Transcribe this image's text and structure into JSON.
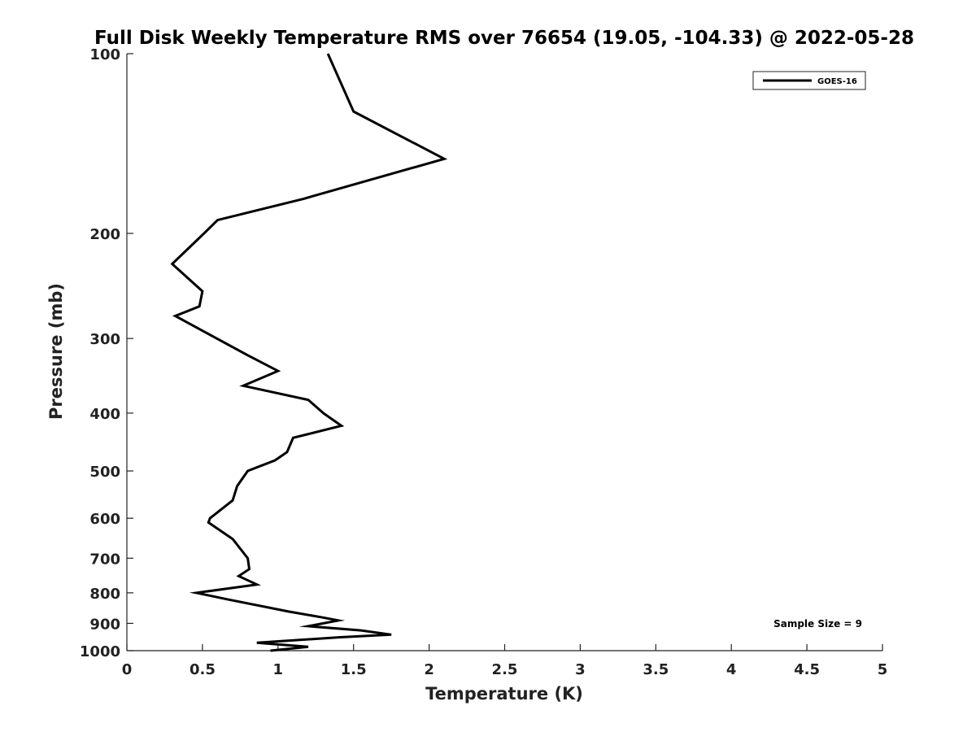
{
  "chart_data": {
    "type": "line",
    "title": "Full Disk Weekly Temperature RMS over 76654 (19.05, -104.33) @ 2022-05-28",
    "xlabel": "Temperature (K)",
    "ylabel": "Pressure (mb)",
    "xlim": [
      0,
      5
    ],
    "ylim": [
      100,
      1000
    ],
    "y_scale": "log",
    "y_reversed": true,
    "x_ticks": [
      0,
      0.5,
      1,
      1.5,
      2,
      2.5,
      3,
      3.5,
      4,
      4.5,
      5
    ],
    "x_tick_labels": [
      "0",
      "0.5",
      "1",
      "1.5",
      "2",
      "2.5",
      "3",
      "3.5",
      "4",
      "4.5",
      "5"
    ],
    "y_ticks": [
      100,
      200,
      300,
      400,
      500,
      600,
      700,
      800,
      900,
      1000
    ],
    "y_tick_labels": [
      "100",
      "200",
      "300",
      "400",
      "500",
      "600",
      "700",
      "800",
      "900",
      "1000"
    ],
    "grid": false,
    "legend_position": "top-right",
    "annotation": "Sample Size = 9",
    "series": [
      {
        "name": "GOES-16",
        "color": "#000000",
        "points": [
          [
            1.33,
            100
          ],
          [
            1.5,
            125
          ],
          [
            2.1,
            150
          ],
          [
            1.17,
            175
          ],
          [
            0.6,
            190
          ],
          [
            0.51,
            200
          ],
          [
            0.3,
            225
          ],
          [
            0.5,
            250
          ],
          [
            0.48,
            265
          ],
          [
            0.32,
            275
          ],
          [
            0.8,
            320
          ],
          [
            1.0,
            340
          ],
          [
            0.77,
            360
          ],
          [
            1.2,
            380
          ],
          [
            1.3,
            400
          ],
          [
            1.42,
            420
          ],
          [
            1.1,
            440
          ],
          [
            1.06,
            465
          ],
          [
            0.98,
            480
          ],
          [
            0.8,
            500
          ],
          [
            0.73,
            530
          ],
          [
            0.7,
            560
          ],
          [
            0.55,
            600
          ],
          [
            0.54,
            610
          ],
          [
            0.7,
            650
          ],
          [
            0.8,
            700
          ],
          [
            0.81,
            730
          ],
          [
            0.74,
            750
          ],
          [
            0.86,
            775
          ],
          [
            0.46,
            800
          ],
          [
            0.66,
            820
          ],
          [
            1.07,
            860
          ],
          [
            1.3,
            880
          ],
          [
            1.4,
            890
          ],
          [
            1.2,
            910
          ],
          [
            1.55,
            925
          ],
          [
            1.75,
            940
          ],
          [
            1.4,
            950
          ],
          [
            0.86,
            970
          ],
          [
            1.2,
            985
          ],
          [
            0.95,
            1000
          ]
        ]
      }
    ]
  }
}
